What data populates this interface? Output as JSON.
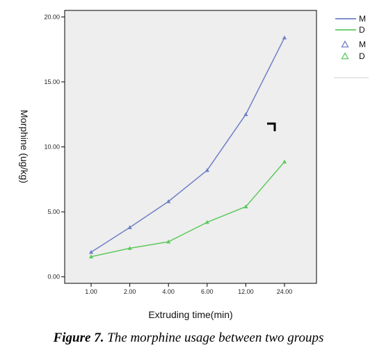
{
  "chart_data": {
    "type": "line",
    "title": "",
    "xlabel": "Extruding time(min)",
    "ylabel": "Morphine (ug/kg)",
    "categories": [
      "1.00",
      "2.00",
      "4.00",
      "6.00",
      "12.00",
      "24.00"
    ],
    "yticks": [
      "0.00",
      "5.00",
      "10.00",
      "15.00",
      "20.00"
    ],
    "ylim": [
      -0.5,
      20.5
    ],
    "grid": false,
    "legend_position": "top-right",
    "series": [
      {
        "name": "M",
        "color": "#6f7fc7",
        "marker": "triangle",
        "values": [
          1.9,
          3.8,
          5.8,
          8.2,
          12.5,
          18.4
        ]
      },
      {
        "name": "D",
        "color": "#5ec95e",
        "marker": "triangle",
        "values": [
          1.55,
          2.2,
          2.7,
          4.2,
          5.4,
          8.85
        ]
      }
    ],
    "legend": {
      "lines": [
        {
          "label": "M",
          "color": "#6f7fc7"
        },
        {
          "label": "D",
          "color": "#5ec95e"
        }
      ],
      "markers": [
        {
          "label": "M",
          "color": "#6f7fc7"
        },
        {
          "label": "D",
          "color": "#5ec95e"
        }
      ]
    }
  },
  "caption": {
    "label": "Figure 7.",
    "text": "The morphine usage between two groups"
  }
}
